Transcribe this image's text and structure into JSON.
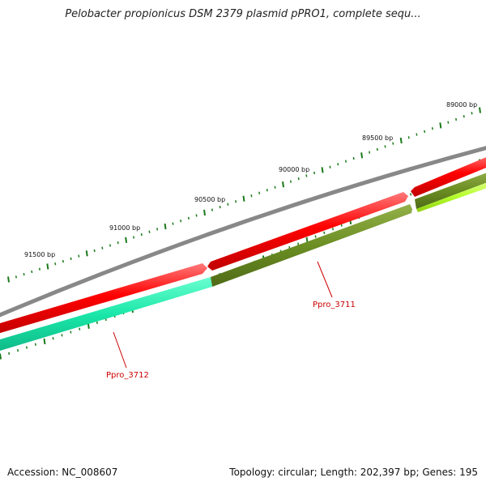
{
  "title": "Pelobacter propionicus DSM 2379 plasmid pPRO1, complete sequ...",
  "footer": {
    "accession": "Accession: NC_008607",
    "topology": "Topology: circular; Length: 202,397 bp; Genes: 195"
  },
  "ticks": [
    "89000 bp",
    "89500 bp",
    "90000 bp",
    "90500 bp",
    "91000 bp",
    "91500 bp"
  ],
  "genes": [
    {
      "label": "Ppro_3711"
    },
    {
      "label": "Ppro_3712"
    }
  ],
  "colors": {
    "backbone": "#888888",
    "forward_strand": "#ff0000",
    "gene_3711": "#6b8e23",
    "gene_3712": "#19e6a8",
    "gene_neighbor": "#b6ff2e",
    "tick": "#1a7a1a",
    "gene_label": "#cc0000"
  }
}
